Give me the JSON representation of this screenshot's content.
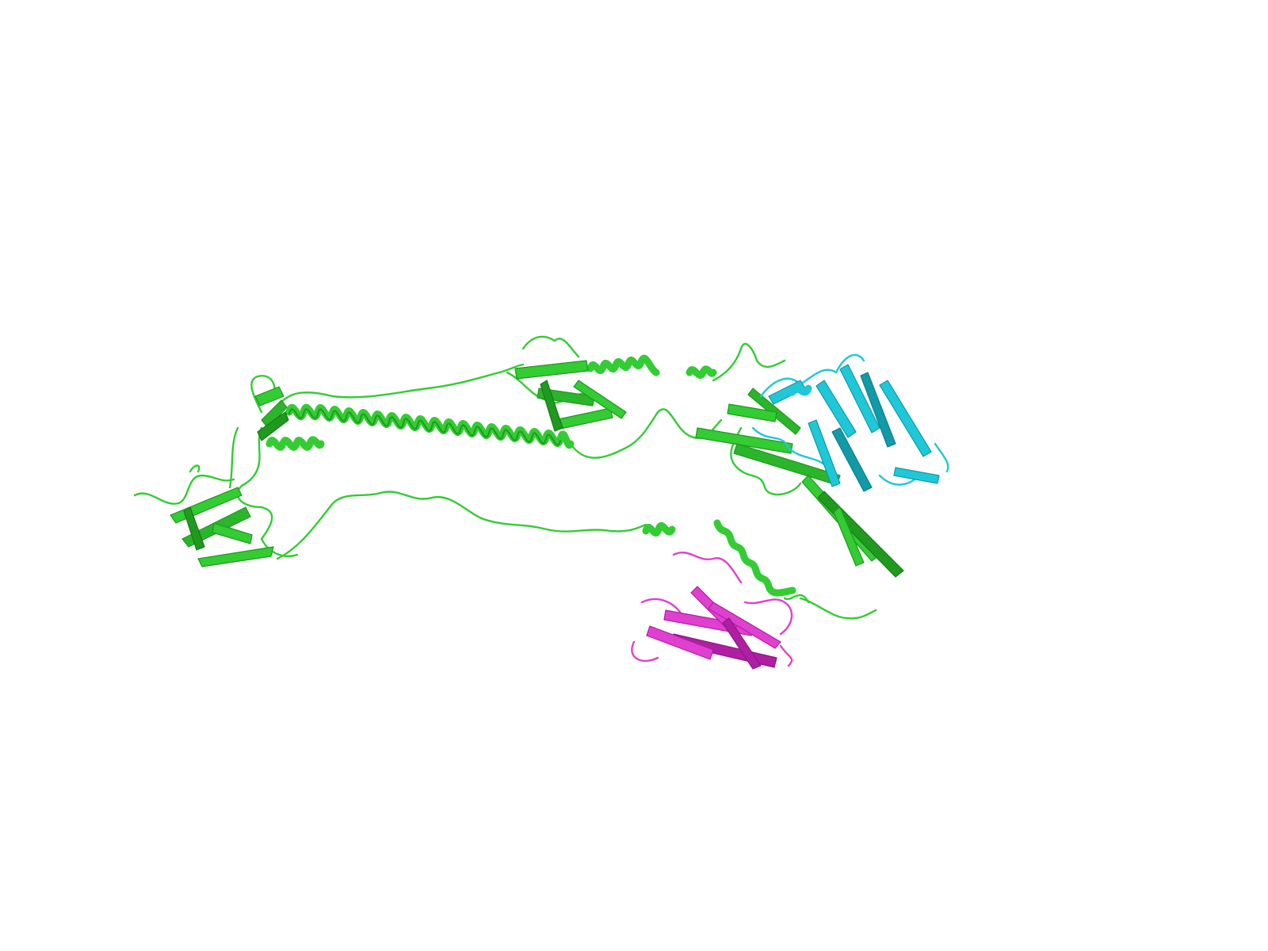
{
  "image": {
    "kind": "protein-cartoon-rendering",
    "background": "#ffffff"
  },
  "chains": [
    {
      "id": "green-chain",
      "color": "#33cc33",
      "shade": "#1f9a1f",
      "role": "large multi-domain chain"
    },
    {
      "id": "cyan-chain",
      "color": "#1fc8d8",
      "shade": "#119aa8",
      "role": "beta-sandwich domain"
    },
    {
      "id": "magenta-chain",
      "color": "#e040d0",
      "shade": "#b01fa3",
      "role": "beta-sandwich domain"
    }
  ]
}
